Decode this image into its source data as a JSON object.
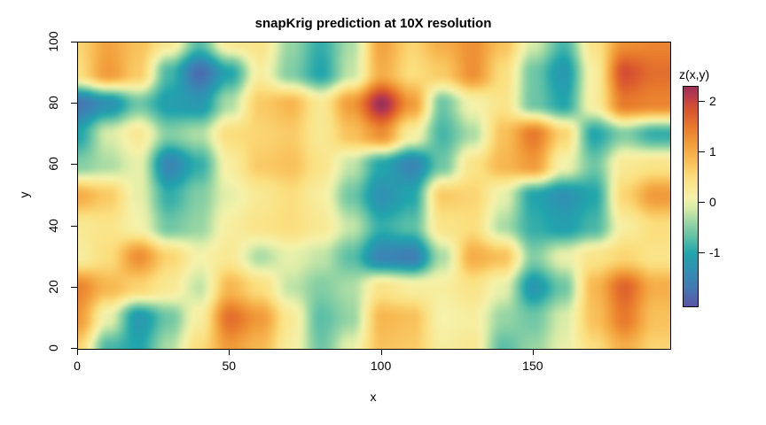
{
  "title": "snapKrig prediction at 10X resolution",
  "axes": {
    "x": {
      "label": "x",
      "range": [
        0,
        195
      ],
      "ticks": [
        0,
        50,
        100,
        150
      ]
    },
    "y": {
      "label": "y",
      "range": [
        0,
        100
      ],
      "ticks": [
        0,
        20,
        40,
        60,
        80,
        100
      ]
    }
  },
  "legend": {
    "title": "z(x,y)",
    "ticks": [
      2,
      1,
      0,
      -1
    ],
    "zlim": [
      -2.05,
      2.3
    ]
  },
  "colors": {
    "background": "#ffffff",
    "plot_border": "#000000",
    "text": "#000000",
    "colormap": [
      [
        -2.05,
        "#5A54A5"
      ],
      [
        -1.7,
        "#4478B2"
      ],
      [
        -1.35,
        "#338FB3"
      ],
      [
        -1.0,
        "#21A5AC"
      ],
      [
        -0.7,
        "#5BBFA6"
      ],
      [
        -0.4,
        "#96D5A4"
      ],
      [
        -0.1,
        "#D8ECA8"
      ],
      [
        0.1,
        "#F5F2AA"
      ],
      [
        0.5,
        "#FBDF7E"
      ],
      [
        0.85,
        "#F8BC55"
      ],
      [
        1.15,
        "#F2A03C"
      ],
      [
        1.5,
        "#E87A2C"
      ],
      [
        1.85,
        "#D8542F"
      ],
      [
        2.1,
        "#BC3C4D"
      ],
      [
        2.3,
        "#9D3157"
      ]
    ]
  },
  "chart_data": {
    "type": "heatmap",
    "title": "snapKrig prediction at 10X resolution",
    "xlabel": "x",
    "ylabel": "y",
    "legend_label": "z(x,y)",
    "palette": "Spectral (reversed)",
    "zlim": [
      -2.05,
      2.3
    ],
    "x": [
      0,
      10,
      20,
      30,
      40,
      50,
      60,
      70,
      80,
      90,
      100,
      110,
      120,
      130,
      140,
      150,
      160,
      170,
      180,
      190
    ],
    "y": [
      0,
      10,
      20,
      30,
      40,
      50,
      60,
      70,
      80,
      90,
      100
    ],
    "values": [
      [
        0.6,
        -0.8,
        -1.0,
        -0.3,
        0.5,
        1.2,
        0.9,
        0.2,
        -0.6,
        0.0,
        0.8,
        0.7,
        0.2,
        0.3,
        -0.7,
        -0.4,
        0.0,
        0.5,
        1.0,
        0.6
      ],
      [
        1.2,
        0.0,
        -1.2,
        -0.6,
        0.2,
        1.6,
        1.2,
        0.3,
        -0.7,
        -0.4,
        0.9,
        0.8,
        0.1,
        0.2,
        -0.4,
        -0.6,
        -0.1,
        0.8,
        1.5,
        0.8
      ],
      [
        1.4,
        0.9,
        0.6,
        0.3,
        -0.2,
        0.9,
        0.5,
        -0.2,
        -0.5,
        -0.3,
        0.4,
        0.2,
        0.2,
        0.4,
        0.0,
        -1.2,
        -0.6,
        0.9,
        1.7,
        1.0
      ],
      [
        0.2,
        0.5,
        1.3,
        0.6,
        0.1,
        0.3,
        -0.3,
        0.0,
        -0.2,
        -0.7,
        -1.5,
        -1.6,
        -0.3,
        1.0,
        0.8,
        -0.5,
        0.0,
        0.4,
        0.6,
        0.4
      ],
      [
        0.3,
        0.4,
        0.1,
        -0.6,
        -0.4,
        0.2,
        0.4,
        0.5,
        0.3,
        -0.2,
        -0.9,
        -0.7,
        0.4,
        0.5,
        -0.3,
        -0.9,
        -1.1,
        -0.8,
        0.2,
        0.5
      ],
      [
        1.0,
        0.7,
        0.0,
        -0.9,
        -0.5,
        0.0,
        0.3,
        0.5,
        0.2,
        -0.6,
        -1.3,
        -1.0,
        0.7,
        0.6,
        0.0,
        -1.0,
        -1.3,
        -1.0,
        0.6,
        1.2
      ],
      [
        -0.5,
        -0.3,
        0.0,
        -1.5,
        -0.9,
        0.2,
        0.7,
        0.8,
        0.4,
        -0.2,
        -1.0,
        -1.5,
        -0.6,
        0.4,
        0.9,
        1.2,
        0.1,
        -0.6,
        0.3,
        0.4
      ],
      [
        -1.0,
        -0.1,
        0.3,
        -0.5,
        -0.3,
        0.5,
        0.6,
        0.7,
        0.3,
        0.8,
        1.3,
        0.2,
        -0.8,
        -0.3,
        0.8,
        1.5,
        0.6,
        -1.0,
        -0.5,
        -0.9
      ],
      [
        -1.7,
        -1.3,
        -0.6,
        -1.1,
        -1.2,
        -0.3,
        0.7,
        0.9,
        0.3,
        1.2,
        2.3,
        1.2,
        -0.6,
        0.1,
        0.4,
        -0.6,
        -1.0,
        0.2,
        1.5,
        1.4
      ],
      [
        0.5,
        1.2,
        0.7,
        -0.8,
        -1.8,
        -1.0,
        0.2,
        -0.5,
        -1.0,
        -0.2,
        1.0,
        0.5,
        0.7,
        1.3,
        0.5,
        -0.6,
        -1.2,
        0.2,
        1.9,
        1.6
      ],
      [
        0.6,
        1.1,
        0.8,
        0.3,
        -0.7,
        0.3,
        0.4,
        -0.4,
        -0.9,
        -0.3,
        1.1,
        0.6,
        1.0,
        1.3,
        0.8,
        -0.1,
        -0.8,
        0.4,
        1.3,
        1.4
      ]
    ]
  }
}
